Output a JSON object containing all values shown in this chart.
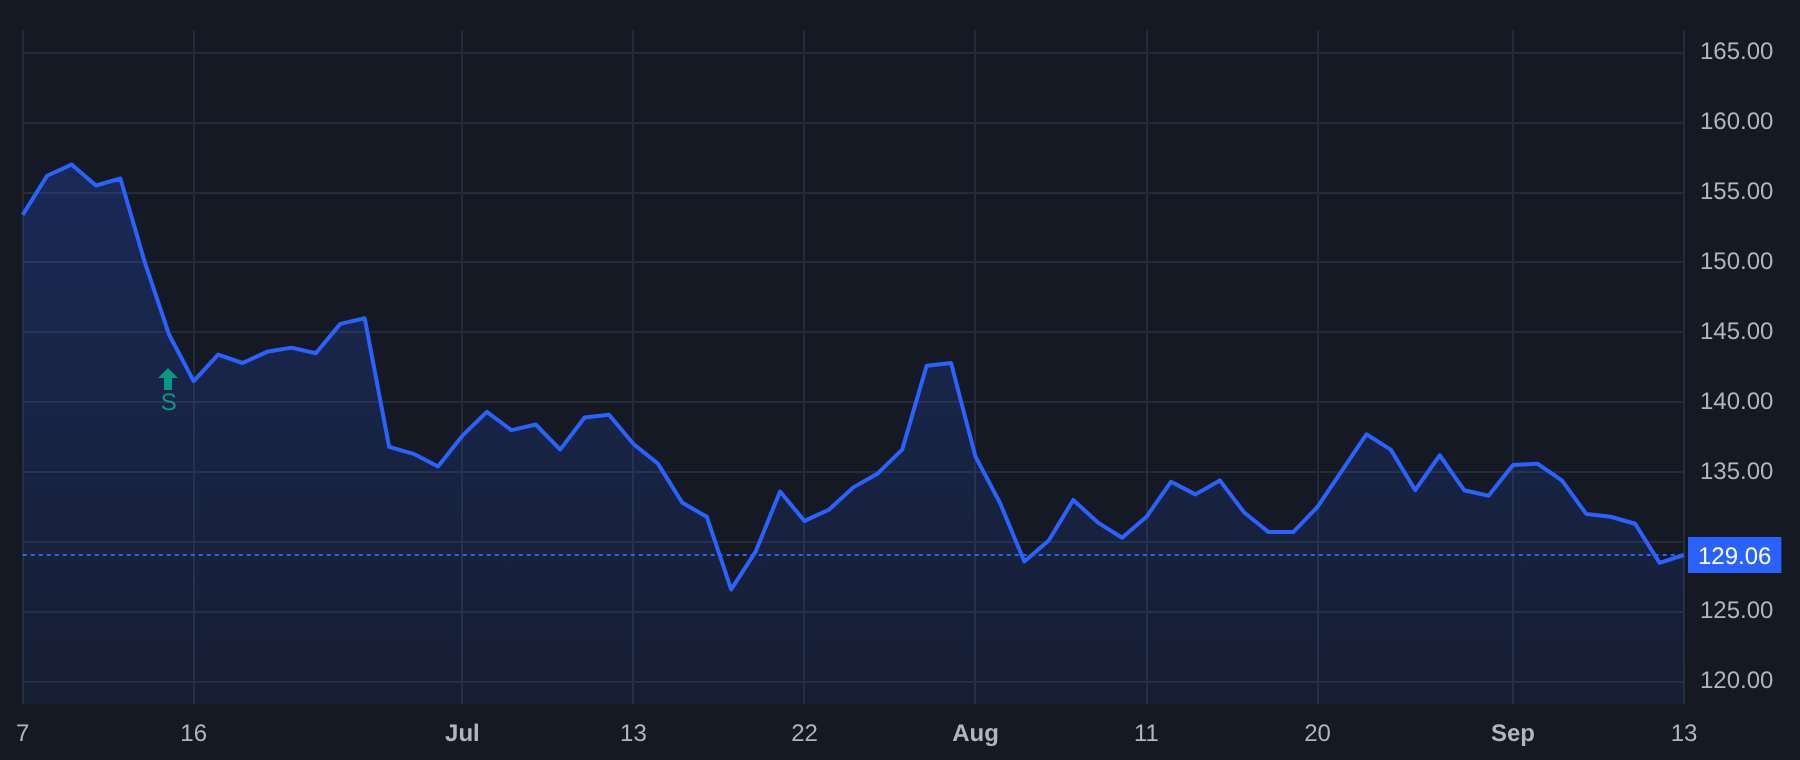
{
  "chart_data": {
    "type": "area",
    "categories": [
      "7",
      null,
      null,
      null,
      null,
      null,
      null,
      "16",
      null,
      null,
      null,
      null,
      null,
      null,
      null,
      null,
      null,
      null,
      "Jul",
      null,
      null,
      null,
      null,
      null,
      null,
      "13",
      null,
      null,
      null,
      null,
      null,
      null,
      "22",
      null,
      null,
      null,
      null,
      null,
      null,
      "Aug",
      null,
      null,
      null,
      null,
      null,
      null,
      "11",
      null,
      null,
      null,
      null,
      null,
      null,
      "20",
      null,
      null,
      null,
      null,
      null,
      null,
      null,
      "Sep",
      null,
      null,
      null,
      null,
      null,
      null,
      "13"
    ],
    "series": [
      {
        "color": "#2962ff",
        "values": [
          153.4,
          156.2,
          157.0,
          155.5,
          156.0,
          150.0,
          144.8,
          141.5,
          143.4,
          142.8,
          143.6,
          143.9,
          143.5,
          145.6,
          146.0,
          136.8,
          136.3,
          135.4,
          137.6,
          139.3,
          138.0,
          138.4,
          136.6,
          138.9,
          139.1,
          137.0,
          135.6,
          132.8,
          131.8,
          126.6,
          129.3,
          133.6,
          131.5,
          132.3,
          133.9,
          134.9,
          136.6,
          142.6,
          142.8,
          136.1,
          132.8,
          128.6,
          130.1,
          133.0,
          131.4,
          130.3,
          131.8,
          134.3,
          133.4,
          134.4,
          132.1,
          130.7,
          130.7,
          132.5,
          135.1,
          137.7,
          136.6,
          133.7,
          136.2,
          133.7,
          133.3,
          135.5,
          135.6,
          134.4,
          132.0,
          131.8,
          131.3,
          128.5,
          129.06
        ]
      }
    ],
    "ylim": [
      118.4,
      166.6
    ],
    "yticks": [
      {
        "value": 120,
        "label": "120.00"
      },
      {
        "value": 125,
        "label": "125.00"
      },
      {
        "value": 130,
        "label": null
      },
      {
        "value": 135,
        "label": "135.00"
      },
      {
        "value": 140,
        "label": "140.00"
      },
      {
        "value": 145,
        "label": "145.00"
      },
      {
        "value": 150,
        "label": "150.00"
      },
      {
        "value": 155,
        "label": "155.00"
      },
      {
        "value": 160,
        "label": "160.00"
      },
      {
        "value": 165,
        "label": "165.00"
      }
    ],
    "grid": true,
    "ref_lines": [
      {
        "axis": "y",
        "value": 129.06,
        "label": "129.06",
        "color": "#2962ff",
        "line_style": "dotted"
      }
    ],
    "annotations": [
      "S"
    ]
  }
}
